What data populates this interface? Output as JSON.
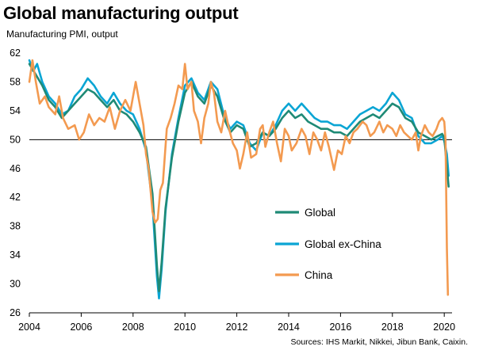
{
  "title": "Global manufacturing output",
  "subtitle": "Manufacturing  PMI, output",
  "source": "Sources: IHS Markit, Nikkei, Jibun Bank, Caixin.",
  "chart_data": {
    "type": "line",
    "title": "Global manufacturing output",
    "ylabel": "Manufacturing  PMI, output",
    "xlim": [
      2004,
      2020.3
    ],
    "ylim": [
      26,
      62
    ],
    "yticks": [
      26,
      30,
      34,
      38,
      42,
      46,
      50,
      54,
      58,
      62
    ],
    "xticks": [
      2004,
      2006,
      2008,
      2010,
      2012,
      2014,
      2016,
      2018,
      2020
    ],
    "reference_line": 50,
    "grid": false,
    "legend_position": "lower-right",
    "series": [
      {
        "name": "Global",
        "color": "#1f8a76",
        "points": [
          [
            2004.0,
            60.5
          ],
          [
            2004.25,
            59.0
          ],
          [
            2004.5,
            57.5
          ],
          [
            2004.75,
            55.5
          ],
          [
            2005.0,
            54.5
          ],
          [
            2005.25,
            53.0
          ],
          [
            2005.5,
            54.0
          ],
          [
            2005.75,
            55.0
          ],
          [
            2006.0,
            56.0
          ],
          [
            2006.25,
            57.0
          ],
          [
            2006.5,
            56.5
          ],
          [
            2006.75,
            55.5
          ],
          [
            2007.0,
            54.5
          ],
          [
            2007.25,
            55.5
          ],
          [
            2007.5,
            54.0
          ],
          [
            2007.75,
            53.5
          ],
          [
            2008.0,
            52.5
          ],
          [
            2008.25,
            51.0
          ],
          [
            2008.5,
            49.0
          ],
          [
            2008.75,
            42.5
          ],
          [
            2008.92,
            32.5
          ],
          [
            2009.0,
            29.0
          ],
          [
            2009.1,
            33.0
          ],
          [
            2009.25,
            40.5
          ],
          [
            2009.5,
            47.5
          ],
          [
            2009.75,
            52.5
          ],
          [
            2010.0,
            56.5
          ],
          [
            2010.25,
            58.0
          ],
          [
            2010.5,
            56.0
          ],
          [
            2010.75,
            55.0
          ],
          [
            2011.0,
            57.5
          ],
          [
            2011.25,
            56.0
          ],
          [
            2011.5,
            53.0
          ],
          [
            2011.75,
            51.0
          ],
          [
            2012.0,
            52.0
          ],
          [
            2012.25,
            51.5
          ],
          [
            2012.5,
            49.0
          ],
          [
            2012.75,
            49.5
          ],
          [
            2013.0,
            51.0
          ],
          [
            2013.25,
            50.5
          ],
          [
            2013.5,
            51.5
          ],
          [
            2013.75,
            53.0
          ],
          [
            2014.0,
            54.0
          ],
          [
            2014.25,
            53.0
          ],
          [
            2014.5,
            53.5
          ],
          [
            2014.75,
            52.5
          ],
          [
            2015.0,
            52.0
          ],
          [
            2015.25,
            51.5
          ],
          [
            2015.5,
            51.5
          ],
          [
            2015.75,
            51.0
          ],
          [
            2016.0,
            51.0
          ],
          [
            2016.25,
            50.5
          ],
          [
            2016.5,
            51.5
          ],
          [
            2016.75,
            52.5
          ],
          [
            2017.0,
            53.0
          ],
          [
            2017.25,
            53.5
          ],
          [
            2017.5,
            53.0
          ],
          [
            2017.75,
            54.0
          ],
          [
            2018.0,
            55.0
          ],
          [
            2018.25,
            54.5
          ],
          [
            2018.5,
            53.0
          ],
          [
            2018.75,
            52.5
          ],
          [
            2019.0,
            51.0
          ],
          [
            2019.25,
            50.5
          ],
          [
            2019.5,
            50.0
          ],
          [
            2019.75,
            50.5
          ],
          [
            2019.92,
            50.8
          ],
          [
            2020.0,
            50.3
          ],
          [
            2020.08,
            47.0
          ],
          [
            2020.17,
            43.5
          ]
        ]
      },
      {
        "name": "Global ex-China",
        "color": "#0aa5d4",
        "points": [
          [
            2004.0,
            61.0
          ],
          [
            2004.15,
            59.5
          ],
          [
            2004.3,
            60.5
          ],
          [
            2004.5,
            58.0
          ],
          [
            2004.75,
            56.0
          ],
          [
            2005.0,
            55.0
          ],
          [
            2005.25,
            53.5
          ],
          [
            2005.5,
            54.0
          ],
          [
            2005.75,
            56.0
          ],
          [
            2006.0,
            57.0
          ],
          [
            2006.25,
            58.5
          ],
          [
            2006.5,
            57.5
          ],
          [
            2006.75,
            56.0
          ],
          [
            2007.0,
            55.0
          ],
          [
            2007.25,
            56.5
          ],
          [
            2007.5,
            55.0
          ],
          [
            2007.75,
            54.0
          ],
          [
            2008.0,
            53.5
          ],
          [
            2008.25,
            51.5
          ],
          [
            2008.5,
            48.5
          ],
          [
            2008.75,
            41.0
          ],
          [
            2008.92,
            31.0
          ],
          [
            2009.0,
            28.0
          ],
          [
            2009.1,
            32.0
          ],
          [
            2009.25,
            40.0
          ],
          [
            2009.5,
            48.0
          ],
          [
            2009.75,
            53.0
          ],
          [
            2010.0,
            57.5
          ],
          [
            2010.25,
            58.5
          ],
          [
            2010.5,
            56.5
          ],
          [
            2010.75,
            55.5
          ],
          [
            2011.0,
            58.0
          ],
          [
            2011.25,
            57.0
          ],
          [
            2011.5,
            53.5
          ],
          [
            2011.75,
            51.5
          ],
          [
            2012.0,
            52.5
          ],
          [
            2012.25,
            52.0
          ],
          [
            2012.5,
            49.5
          ],
          [
            2012.75,
            48.5
          ],
          [
            2013.0,
            51.0
          ],
          [
            2013.25,
            50.5
          ],
          [
            2013.5,
            52.0
          ],
          [
            2013.75,
            54.0
          ],
          [
            2014.0,
            55.0
          ],
          [
            2014.25,
            54.0
          ],
          [
            2014.5,
            55.0
          ],
          [
            2014.75,
            54.0
          ],
          [
            2015.0,
            53.0
          ],
          [
            2015.25,
            52.5
          ],
          [
            2015.5,
            52.5
          ],
          [
            2015.75,
            52.0
          ],
          [
            2016.0,
            52.0
          ],
          [
            2016.25,
            51.5
          ],
          [
            2016.5,
            52.5
          ],
          [
            2016.75,
            53.5
          ],
          [
            2017.0,
            54.0
          ],
          [
            2017.25,
            54.5
          ],
          [
            2017.5,
            54.0
          ],
          [
            2017.75,
            55.0
          ],
          [
            2018.0,
            56.5
          ],
          [
            2018.25,
            55.5
          ],
          [
            2018.5,
            53.5
          ],
          [
            2018.75,
            53.0
          ],
          [
            2019.0,
            50.5
          ],
          [
            2019.25,
            49.5
          ],
          [
            2019.5,
            49.5
          ],
          [
            2019.75,
            50.0
          ],
          [
            2019.92,
            50.5
          ],
          [
            2020.0,
            49.8
          ],
          [
            2020.1,
            48.0
          ],
          [
            2020.17,
            45.0
          ]
        ]
      },
      {
        "name": "China",
        "color": "#f39a50",
        "points": [
          [
            2004.0,
            58.0
          ],
          [
            2004.12,
            61.0
          ],
          [
            2004.25,
            58.0
          ],
          [
            2004.4,
            55.0
          ],
          [
            2004.6,
            56.0
          ],
          [
            2004.75,
            54.5
          ],
          [
            2005.0,
            53.5
          ],
          [
            2005.15,
            56.0
          ],
          [
            2005.3,
            53.0
          ],
          [
            2005.5,
            51.5
          ],
          [
            2005.75,
            52.0
          ],
          [
            2005.92,
            50.0
          ],
          [
            2006.1,
            51.0
          ],
          [
            2006.3,
            53.5
          ],
          [
            2006.5,
            52.0
          ],
          [
            2006.7,
            53.0
          ],
          [
            2006.9,
            52.5
          ],
          [
            2007.1,
            54.5
          ],
          [
            2007.3,
            51.5
          ],
          [
            2007.5,
            54.0
          ],
          [
            2007.7,
            55.5
          ],
          [
            2007.9,
            54.0
          ],
          [
            2008.0,
            56.0
          ],
          [
            2008.1,
            58.0
          ],
          [
            2008.25,
            55.0
          ],
          [
            2008.4,
            52.0
          ],
          [
            2008.5,
            48.0
          ],
          [
            2008.6,
            46.0
          ],
          [
            2008.75,
            40.0
          ],
          [
            2008.85,
            38.5
          ],
          [
            2008.95,
            39.0
          ],
          [
            2009.05,
            43.0
          ],
          [
            2009.15,
            44.0
          ],
          [
            2009.3,
            51.5
          ],
          [
            2009.45,
            53.0
          ],
          [
            2009.6,
            55.0
          ],
          [
            2009.75,
            57.5
          ],
          [
            2009.9,
            57.0
          ],
          [
            2010.0,
            60.5
          ],
          [
            2010.1,
            57.0
          ],
          [
            2010.25,
            58.0
          ],
          [
            2010.35,
            54.0
          ],
          [
            2010.5,
            52.5
          ],
          [
            2010.62,
            49.5
          ],
          [
            2010.75,
            53.0
          ],
          [
            2010.9,
            55.0
          ],
          [
            2011.0,
            58.0
          ],
          [
            2011.12,
            56.5
          ],
          [
            2011.25,
            52.5
          ],
          [
            2011.4,
            51.0
          ],
          [
            2011.55,
            54.0
          ],
          [
            2011.7,
            51.5
          ],
          [
            2011.85,
            49.5
          ],
          [
            2012.0,
            48.5
          ],
          [
            2012.12,
            46.0
          ],
          [
            2012.25,
            48.0
          ],
          [
            2012.4,
            51.0
          ],
          [
            2012.55,
            47.5
          ],
          [
            2012.75,
            48.0
          ],
          [
            2012.9,
            51.5
          ],
          [
            2013.0,
            52.0
          ],
          [
            2013.1,
            49.0
          ],
          [
            2013.25,
            51.0
          ],
          [
            2013.4,
            52.5
          ],
          [
            2013.55,
            49.5
          ],
          [
            2013.7,
            47.0
          ],
          [
            2013.85,
            51.5
          ],
          [
            2014.0,
            50.5
          ],
          [
            2014.12,
            48.5
          ],
          [
            2014.3,
            49.5
          ],
          [
            2014.5,
            51.5
          ],
          [
            2014.65,
            50.5
          ],
          [
            2014.8,
            48.0
          ],
          [
            2014.95,
            51.0
          ],
          [
            2015.1,
            50.0
          ],
          [
            2015.25,
            48.5
          ],
          [
            2015.4,
            51.0
          ],
          [
            2015.55,
            49.0
          ],
          [
            2015.75,
            45.8
          ],
          [
            2015.9,
            48.5
          ],
          [
            2016.05,
            48.0
          ],
          [
            2016.2,
            50.5
          ],
          [
            2016.35,
            49.5
          ],
          [
            2016.5,
            51.0
          ],
          [
            2016.65,
            51.5
          ],
          [
            2016.85,
            52.5
          ],
          [
            2017.0,
            52.0
          ],
          [
            2017.15,
            50.5
          ],
          [
            2017.3,
            51.0
          ],
          [
            2017.5,
            52.5
          ],
          [
            2017.65,
            51.0
          ],
          [
            2017.8,
            52.0
          ],
          [
            2018.0,
            51.5
          ],
          [
            2018.15,
            50.5
          ],
          [
            2018.3,
            52.0
          ],
          [
            2018.45,
            51.0
          ],
          [
            2018.6,
            50.5
          ],
          [
            2018.75,
            50.0
          ],
          [
            2018.9,
            51.0
          ],
          [
            2019.0,
            48.5
          ],
          [
            2019.1,
            50.5
          ],
          [
            2019.25,
            52.0
          ],
          [
            2019.4,
            51.0
          ],
          [
            2019.55,
            50.5
          ],
          [
            2019.7,
            51.5
          ],
          [
            2019.8,
            52.5
          ],
          [
            2019.92,
            53.0
          ],
          [
            2020.0,
            52.5
          ],
          [
            2020.05,
            50.0
          ],
          [
            2020.1,
            35.0
          ],
          [
            2020.14,
            28.5
          ]
        ]
      }
    ]
  }
}
